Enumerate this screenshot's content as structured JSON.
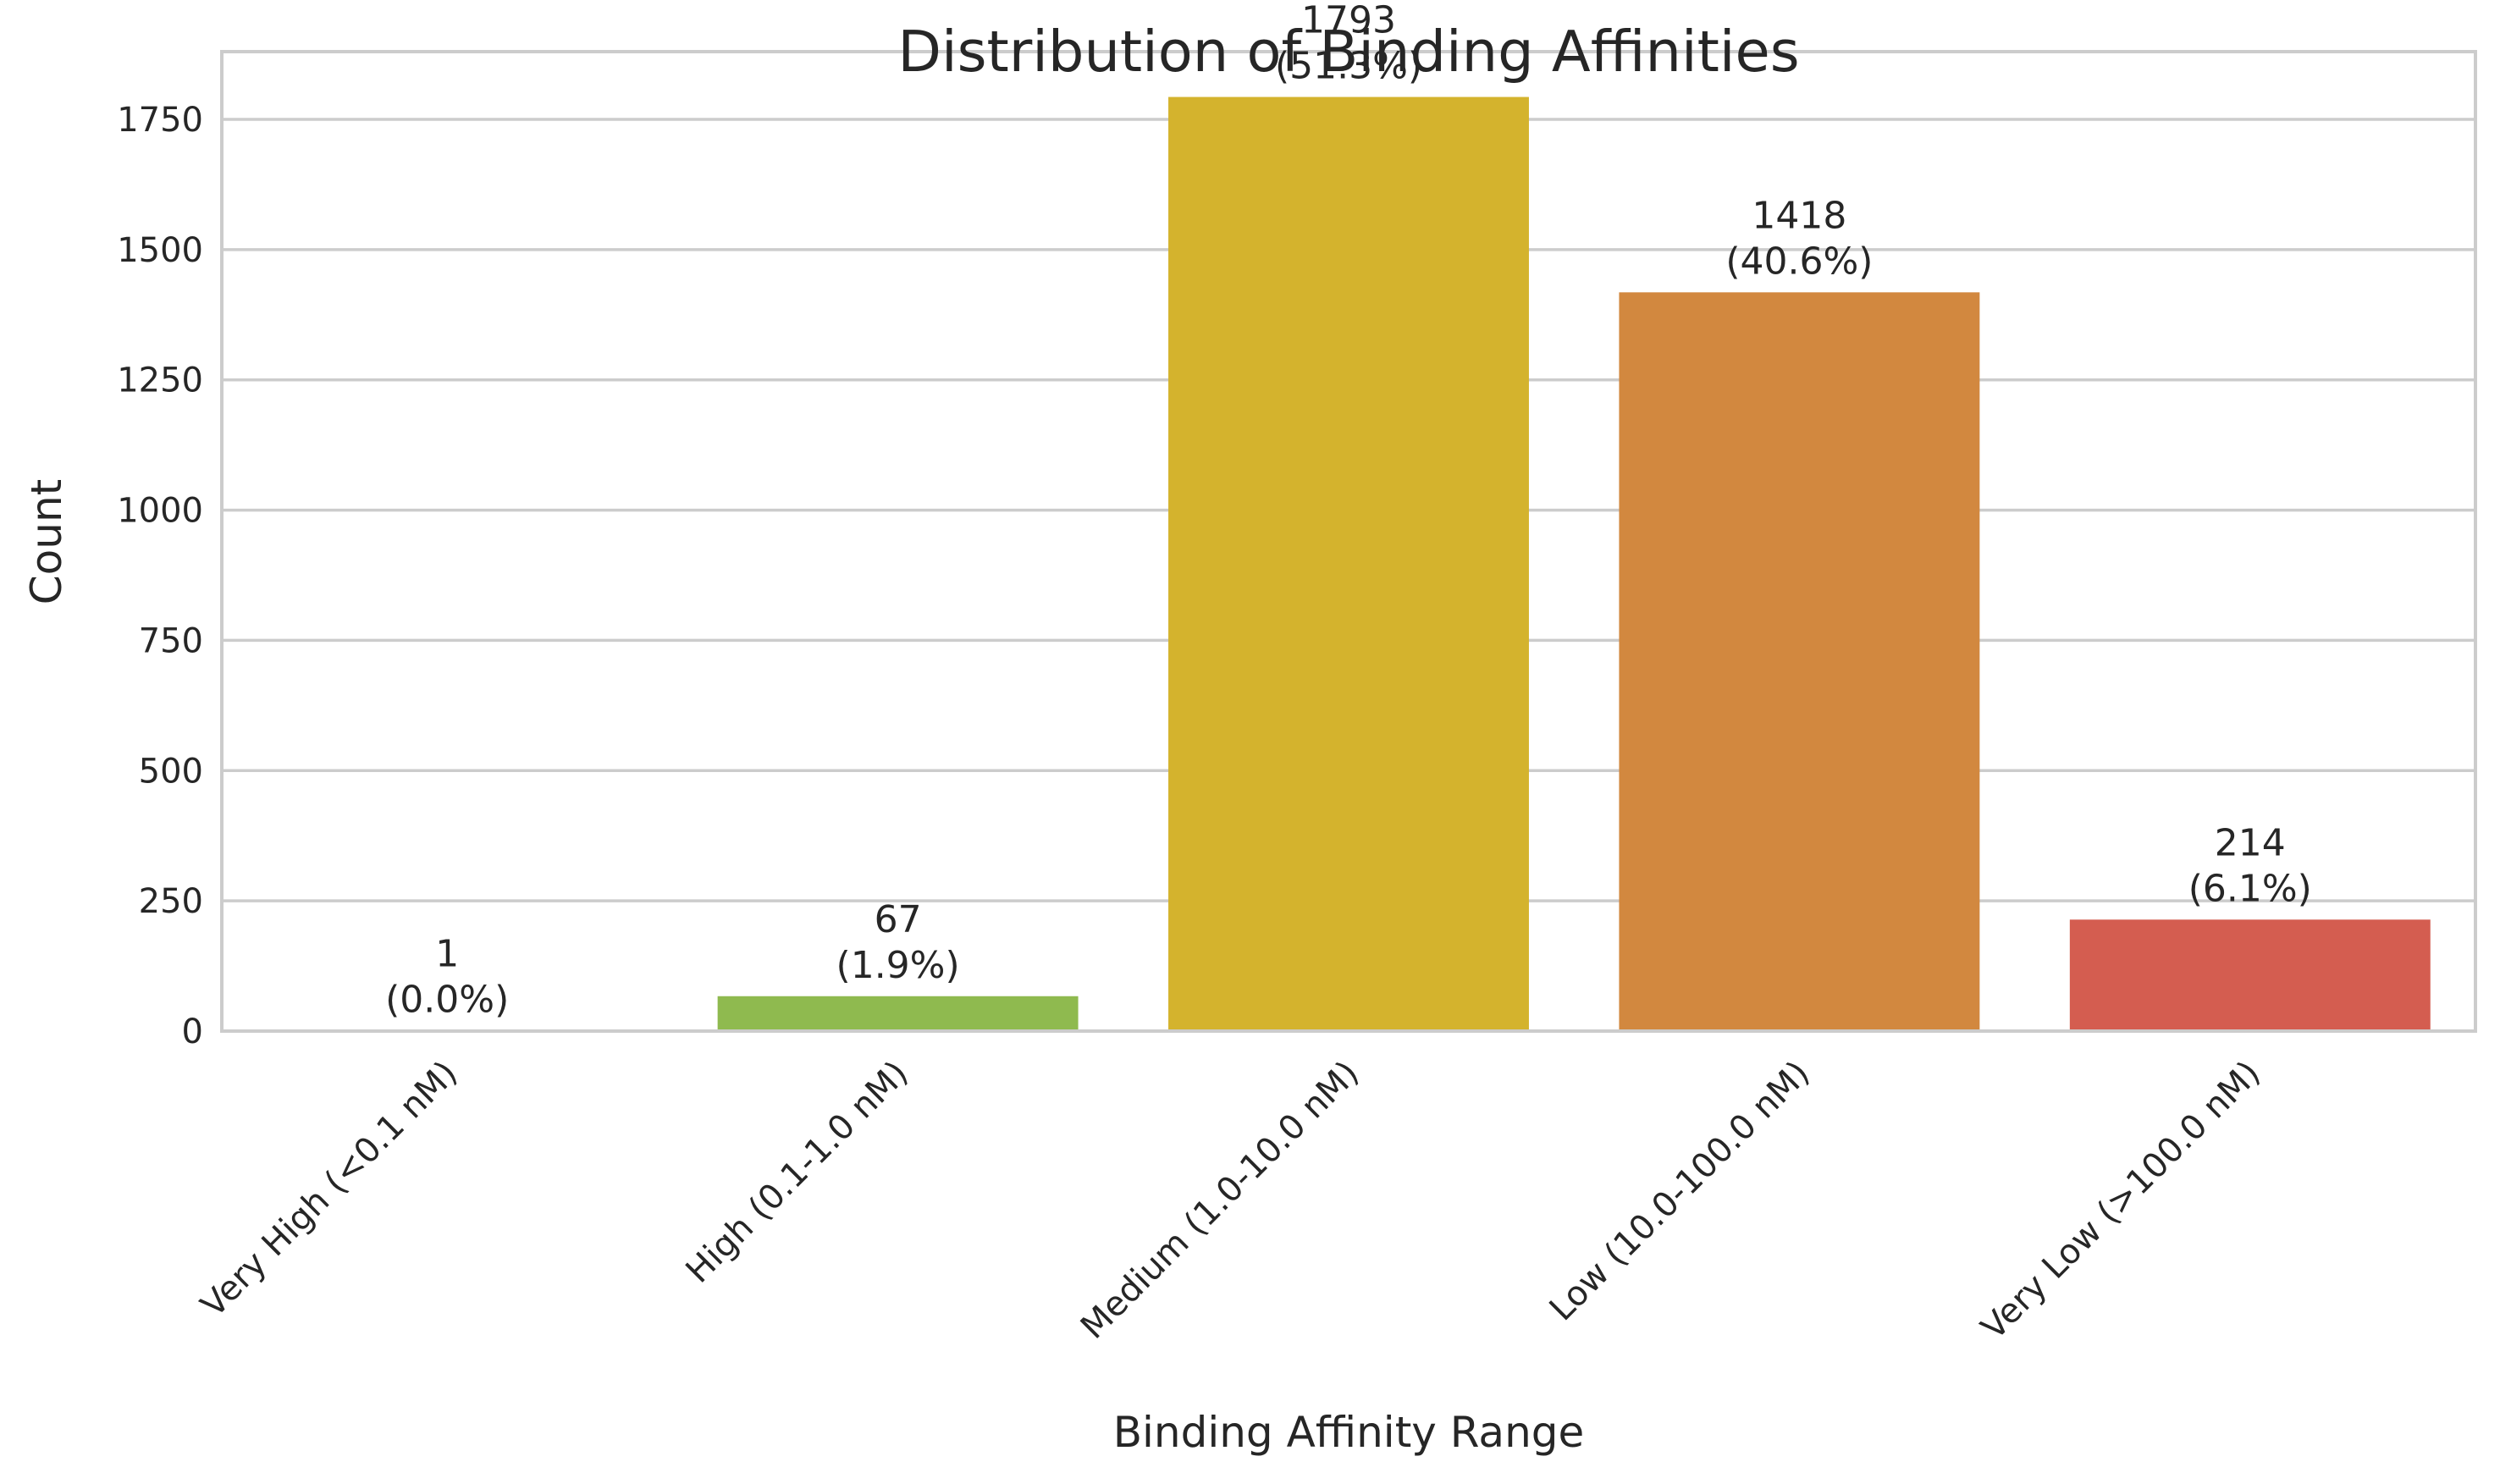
{
  "chart_data": {
    "type": "bar",
    "title": "Distribution of Binding Affinities",
    "xlabel": "Binding Affinity Range",
    "ylabel": "Count",
    "categories": [
      "Very High (<0.1 nM)",
      "High (0.1-1.0 nM)",
      "Medium (1.0-10.0 nM)",
      "Low (10.0-100.0 nM)",
      "Very Low (>100.0 nM)"
    ],
    "values": [
      1,
      67,
      1793,
      1418,
      214
    ],
    "value_labels": [
      "1",
      "67",
      "1793",
      "1418",
      "214"
    ],
    "percent_labels": [
      "(0.0%)",
      "(1.9%)",
      "(51.3%)",
      "(40.6%)",
      "(6.1%)"
    ],
    "colors": [
      "#2ca25f",
      "#8fba4f",
      "#d4b32d",
      "#d2883f",
      "#d45d50"
    ],
    "yticks": [
      0,
      250,
      500,
      750,
      1000,
      1250,
      1500,
      1750
    ],
    "ylim": [
      0,
      1880
    ],
    "grid": true
  }
}
